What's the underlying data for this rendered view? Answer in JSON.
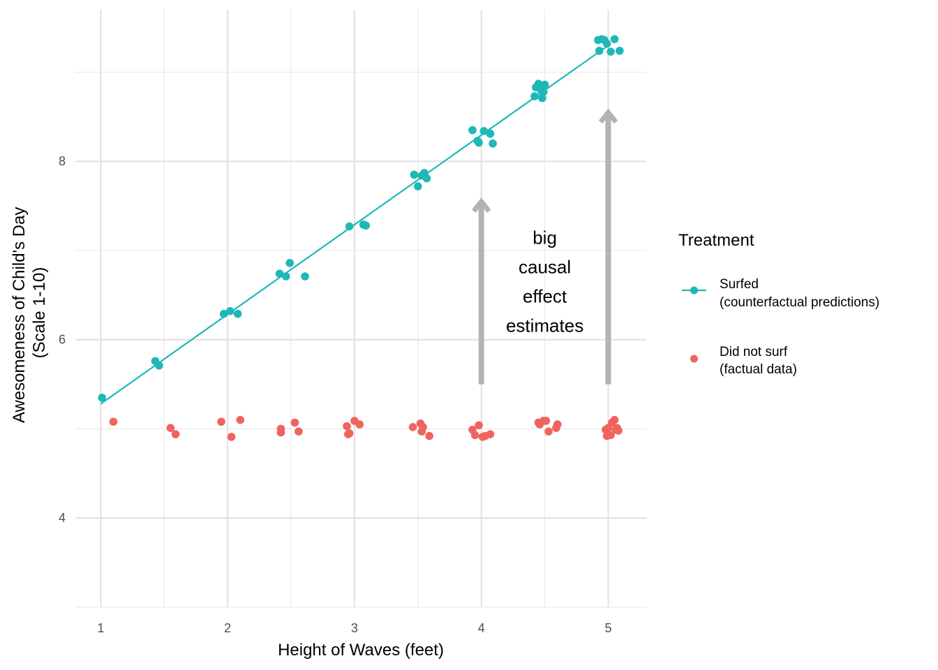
{
  "chart_data": {
    "type": "scatter",
    "xlabel": "Height of Waves (feet)",
    "ylabel_lines": [
      "Awesomeness of Child's Day",
      "(Scale 1-10)"
    ],
    "xlim": [
      0.8,
      5.3
    ],
    "ylim": [
      3.0,
      9.7
    ],
    "x_ticks": [
      1,
      2,
      3,
      4,
      5
    ],
    "x_minor_ticks": [
      1.5,
      2.5,
      3.5,
      4.5
    ],
    "y_ticks": [
      4,
      6,
      8
    ],
    "y_minor_ticks": [
      3,
      5,
      7,
      9
    ],
    "grid": true,
    "legend": {
      "title": "Treatment",
      "position": "right",
      "items": [
        {
          "lines": [
            "Surfed",
            "(counterfactual predictions)"
          ],
          "color": "#1fb8b8",
          "marker": "point-with-line"
        },
        {
          "lines": [
            "Did not surf",
            "(factual data)"
          ],
          "color": "#f0645f",
          "marker": "point"
        }
      ]
    },
    "fit_line": {
      "series": "Surfed",
      "x": [
        1.0,
        5.0
      ],
      "y": [
        5.28,
        9.3
      ],
      "color": "#1fb8b8"
    },
    "series": [
      {
        "name": "Surfed (counterfactual predictions)",
        "color": "#1fb8b8",
        "points": [
          [
            1.01,
            5.35
          ],
          [
            1.43,
            5.76
          ],
          [
            1.46,
            5.71
          ],
          [
            1.97,
            6.29
          ],
          [
            2.02,
            6.32
          ],
          [
            2.08,
            6.29
          ],
          [
            2.41,
            6.74
          ],
          [
            2.46,
            6.71
          ],
          [
            2.49,
            6.86
          ],
          [
            2.61,
            6.71
          ],
          [
            2.96,
            7.27
          ],
          [
            3.07,
            7.29
          ],
          [
            3.09,
            7.28
          ],
          [
            3.47,
            7.85
          ],
          [
            3.5,
            7.72
          ],
          [
            3.53,
            7.84
          ],
          [
            3.55,
            7.87
          ],
          [
            3.57,
            7.81
          ],
          [
            3.93,
            8.35
          ],
          [
            3.97,
            8.23
          ],
          [
            3.98,
            8.21
          ],
          [
            4.02,
            8.34
          ],
          [
            4.07,
            8.31
          ],
          [
            4.09,
            8.2
          ],
          [
            4.42,
            8.73
          ],
          [
            4.43,
            8.83
          ],
          [
            4.45,
            8.87
          ],
          [
            4.47,
            8.8
          ],
          [
            4.48,
            8.71
          ],
          [
            4.5,
            8.86
          ],
          [
            4.49,
            8.78
          ],
          [
            4.92,
            9.36
          ],
          [
            4.93,
            9.24
          ],
          [
            4.95,
            9.37
          ],
          [
            4.97,
            9.36
          ],
          [
            4.99,
            9.32
          ],
          [
            5.02,
            9.23
          ],
          [
            5.05,
            9.37
          ],
          [
            5.09,
            9.24
          ]
        ]
      },
      {
        "name": "Did not surf (factual data)",
        "color": "#f0645f",
        "points": [
          [
            1.1,
            5.08
          ],
          [
            1.55,
            5.01
          ],
          [
            1.59,
            4.94
          ],
          [
            1.95,
            5.08
          ],
          [
            2.03,
            4.91
          ],
          [
            2.1,
            5.1
          ],
          [
            2.42,
            5.0
          ],
          [
            2.42,
            4.96
          ],
          [
            2.53,
            5.07
          ],
          [
            2.56,
            4.97
          ],
          [
            2.94,
            5.03
          ],
          [
            2.95,
            4.94
          ],
          [
            2.96,
            4.95
          ],
          [
            3.0,
            5.09
          ],
          [
            3.04,
            5.05
          ],
          [
            3.46,
            5.02
          ],
          [
            3.52,
            5.06
          ],
          [
            3.53,
            4.97
          ],
          [
            3.54,
            5.02
          ],
          [
            3.59,
            4.92
          ],
          [
            3.93,
            4.99
          ],
          [
            3.95,
            4.93
          ],
          [
            3.98,
            5.04
          ],
          [
            4.01,
            4.91
          ],
          [
            4.03,
            4.92
          ],
          [
            4.07,
            4.94
          ],
          [
            4.45,
            5.07
          ],
          [
            4.46,
            5.05
          ],
          [
            4.49,
            5.09
          ],
          [
            4.51,
            5.09
          ],
          [
            4.53,
            4.97
          ],
          [
            4.59,
            5.01
          ],
          [
            4.6,
            5.05
          ],
          [
            4.98,
            4.99
          ],
          [
            4.99,
            4.92
          ],
          [
            5.0,
            5.01
          ],
          [
            5.02,
            4.93
          ],
          [
            5.03,
            5.07
          ],
          [
            5.05,
            5.1
          ],
          [
            5.06,
            4.99
          ],
          [
            5.07,
            5.01
          ],
          [
            5.08,
            4.98
          ]
        ]
      }
    ],
    "arrows": [
      {
        "x": 4.0,
        "y_from": 5.5,
        "y_to": 7.55,
        "color": "#b3b3b3"
      },
      {
        "x": 5.0,
        "y_from": 5.5,
        "y_to": 8.55,
        "color": "#b3b3b3"
      }
    ],
    "annotation": {
      "lines": [
        "big",
        "causal",
        "effect",
        "estimates"
      ],
      "x": 4.5,
      "y": 6.65
    }
  }
}
